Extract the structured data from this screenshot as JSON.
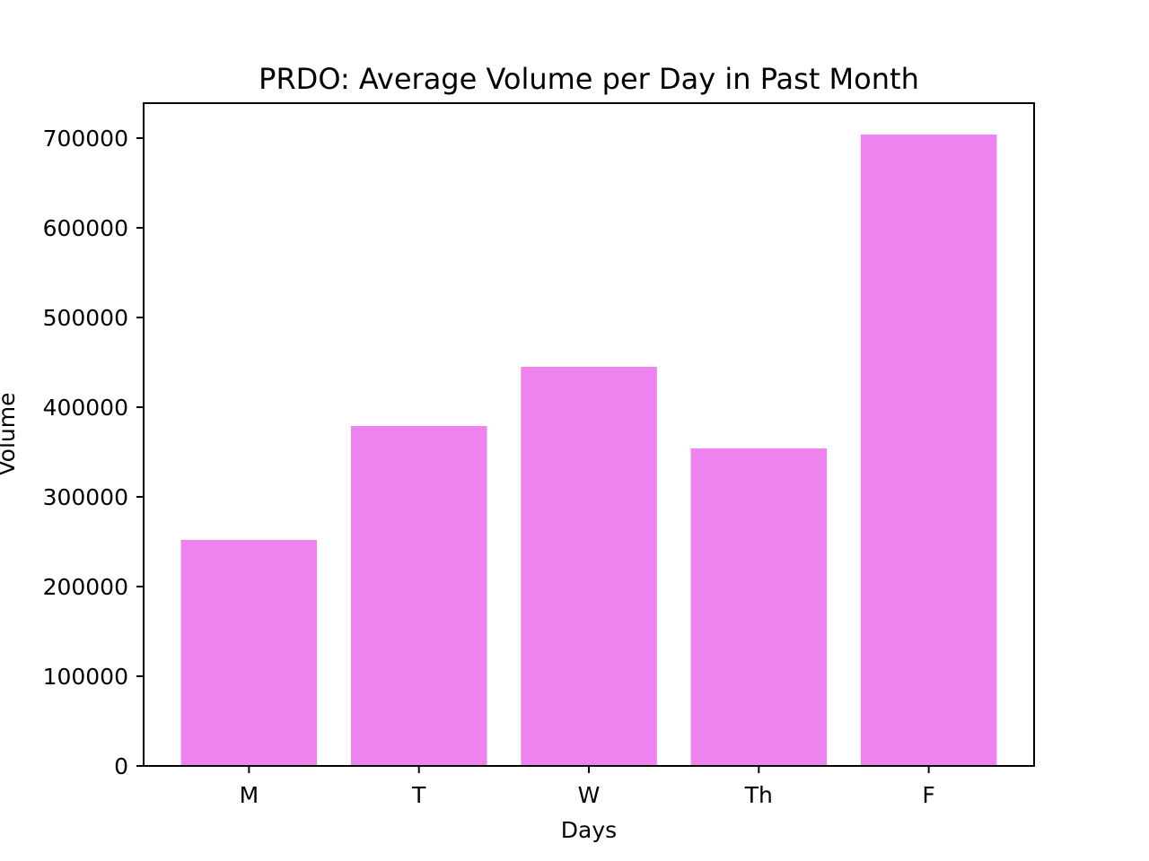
{
  "chart_data": {
    "type": "bar",
    "title": "PRDO: Average Volume per Day in Past Month",
    "xlabel": "Days",
    "ylabel": "Volume",
    "categories": [
      "M",
      "T",
      "W",
      "Th",
      "F"
    ],
    "values": [
      252000,
      379000,
      445000,
      354000,
      704000
    ],
    "ylim": [
      0,
      739000
    ],
    "yticks": [
      0,
      100000,
      200000,
      300000,
      400000,
      500000,
      600000,
      700000
    ],
    "bar_color": "#ee82ee",
    "grid": false,
    "legend": "none"
  }
}
